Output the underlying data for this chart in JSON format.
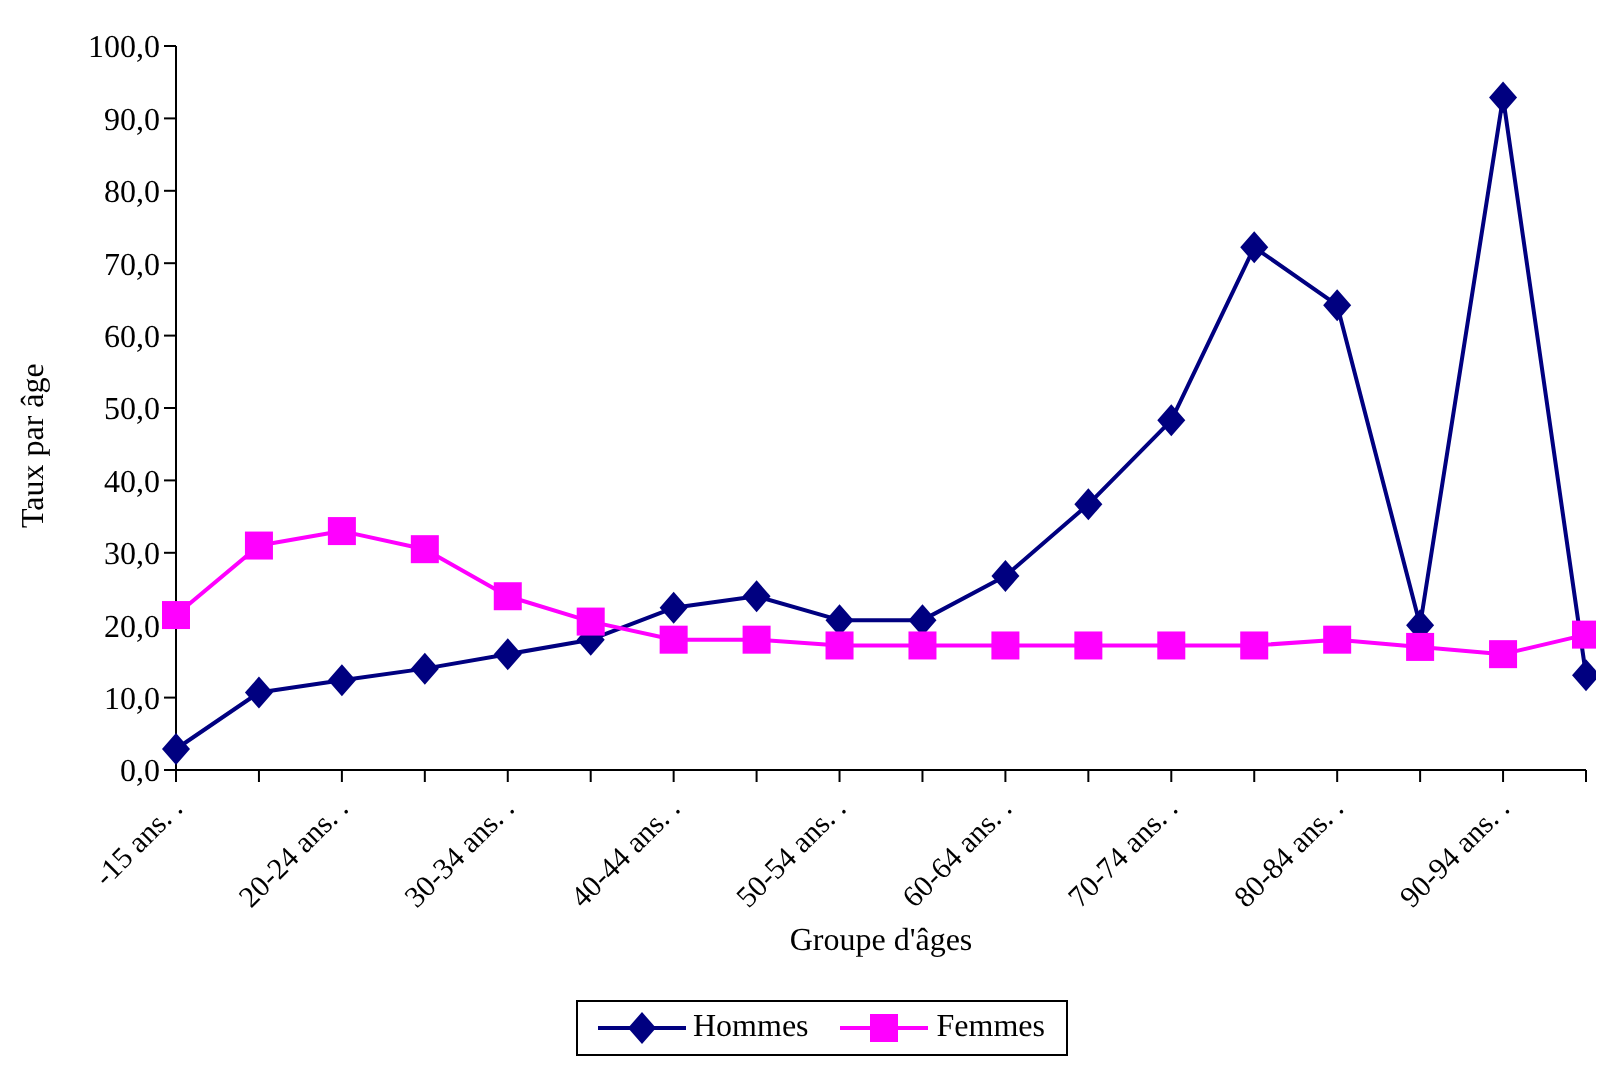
{
  "chart_data": {
    "type": "line",
    "xlabel": "Groupe d'âges",
    "ylabel": "Taux par âge",
    "categories": [
      "-15 ans. .",
      null,
      "20-24 ans. .",
      null,
      "30-34 ans. .",
      null,
      "40-44 ans. .",
      null,
      "50-54 ans. .",
      null,
      "60-64 ans. .",
      null,
      "70-74 ans. .",
      null,
      "80-84 ans. .",
      null,
      "90-94 ans. .",
      null
    ],
    "series": [
      {
        "name": "Hommes",
        "color": "#000080",
        "marker": "diamond",
        "values": [
          2.9,
          10.7,
          12.4,
          14,
          16,
          18,
          22.4,
          24,
          20.7,
          20.7,
          26.8,
          36.7,
          48.3,
          72.2,
          64.2,
          20,
          92.9,
          13.1
        ]
      },
      {
        "name": "Femmes",
        "color": "#ff00ff",
        "marker": "square",
        "values": [
          21.4,
          31,
          33,
          30.5,
          24,
          20.5,
          18,
          18,
          17.2,
          17.2,
          17.2,
          17.2,
          17.2,
          17.2,
          18,
          17,
          16,
          18.7
        ]
      }
    ],
    "ylim": [
      0,
      100
    ],
    "yticks": [
      {
        "value": 0,
        "label": "0,0"
      },
      {
        "value": 10,
        "label": "10,0"
      },
      {
        "value": 20,
        "label": "20,0"
      },
      {
        "value": 30,
        "label": "30,0"
      },
      {
        "value": 40,
        "label": "40,0"
      },
      {
        "value": 50,
        "label": "50,0"
      },
      {
        "value": 60,
        "label": "60,0"
      },
      {
        "value": 70,
        "label": "70,0"
      },
      {
        "value": 80,
        "label": "80,0"
      },
      {
        "value": 90,
        "label": "90,0"
      },
      {
        "value": 100,
        "label": "100,0"
      }
    ],
    "grid": false,
    "legend": "bottom"
  }
}
